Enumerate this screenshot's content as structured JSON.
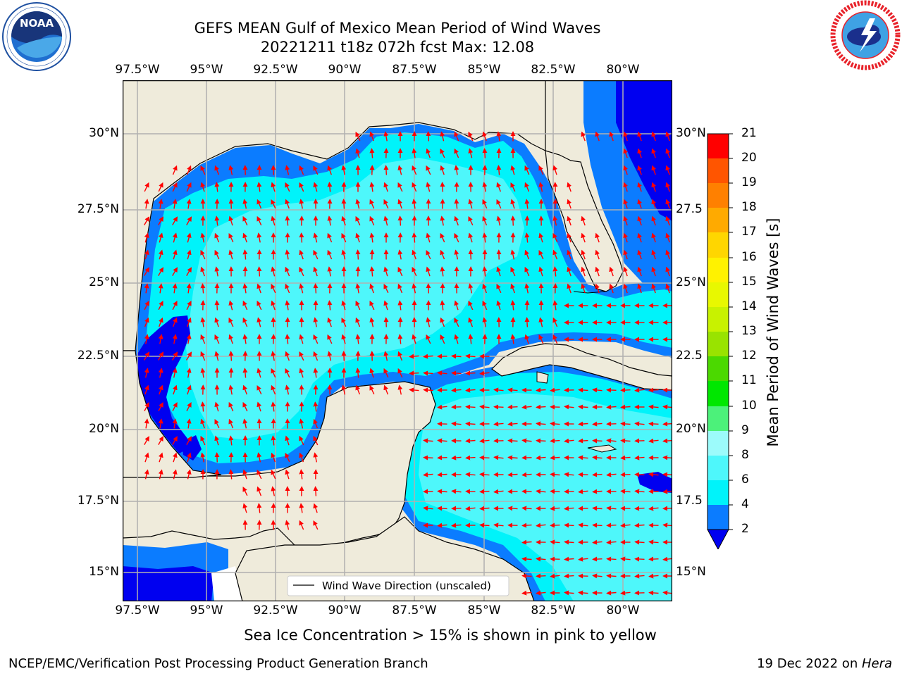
{
  "title": {
    "line1": "GEFS MEAN Gulf of Mexico Mean Period of Wind Waves",
    "line2": "20221211 t18z 072h fcst   Max: 12.08"
  },
  "logos": {
    "left": {
      "text": "NOAA",
      "ring_text": "NATIONAL OCEANIC AND ATMOSPHERIC ADMINISTRATION · U.S. DEPARTMENT OF COMMERCE"
    },
    "right": {
      "ring_text": "NATIONAL WEATHER SERVICE"
    }
  },
  "map": {
    "lon_ticks": [
      "97.5°W",
      "95°W",
      "92.5°W",
      "90°W",
      "87.5°W",
      "85°W",
      "82.5°W",
      "80°W"
    ],
    "lat_ticks_left": [
      "30°N",
      "27.5°N",
      "25°N",
      "22.5°N",
      "20°N",
      "17.5°N",
      "15°N"
    ],
    "lat_ticks_right": [
      "30°N",
      "27.5",
      "25°N",
      "22.5",
      "20°N",
      "17.5",
      "15°N"
    ],
    "legend_label": "Wind Wave Direction (unscaled)",
    "land_color": "#efebdb",
    "ocean_colors": {
      "light_cyan": "#4ef7fb",
      "cyan": "#00f3fa",
      "blue": "#0b7cff",
      "dark_blue": "#0000f0"
    },
    "arrow_color": "#ff0000"
  },
  "colorbar": {
    "label": "Mean Period of Wind Waves [s]",
    "ticks": [
      "2",
      "4",
      "6",
      "8",
      "9",
      "10",
      "11",
      "12",
      "13",
      "14",
      "15",
      "16",
      "17",
      "18",
      "19",
      "20",
      "21"
    ],
    "colors": [
      "#0b7cff",
      "#00f3fa",
      "#4ef7fb",
      "#9cfbfb",
      "#4cf17a",
      "#00e700",
      "#4bd900",
      "#99e300",
      "#c8f200",
      "#e8f800",
      "#fff200",
      "#ffd600",
      "#ffaa00",
      "#ff8000",
      "#ff5500",
      "#ff2a00",
      "#ff0000"
    ]
  },
  "sea_ice_note": "Sea Ice Concentration > 15% is shown in pink to yellow",
  "footer": {
    "left": "NCEP/EMC/Verification Post Processing Product Generation Branch",
    "date": "19 Dec 2022 on ",
    "machine": "Hera"
  }
}
